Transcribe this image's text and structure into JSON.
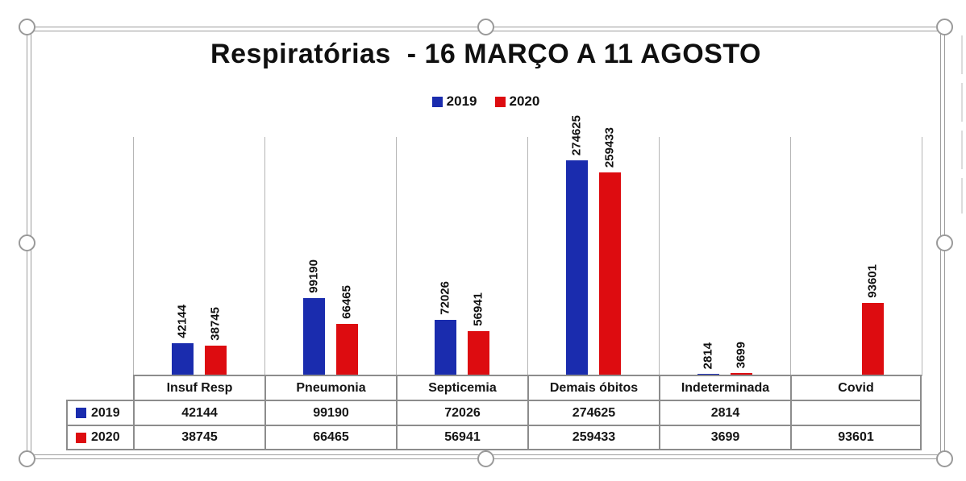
{
  "title": "Respiratórias  - 16 MARÇO A 11 AGOSTO",
  "legend": {
    "position": "top-center",
    "entries": [
      "2019",
      "2020"
    ]
  },
  "colors": {
    "series_2019": "#1a2cae",
    "series_2020": "#dd0c10"
  },
  "chart_data": {
    "type": "bar",
    "title": "Respiratórias  - 16 MARÇO A 11 AGOSTO",
    "categories": [
      "Insuf Resp",
      "Pneumonia",
      "Septicemia",
      "Demais óbitos",
      "Indeterminada",
      "Covid"
    ],
    "series": [
      {
        "name": "2019",
        "color": "#1a2cae",
        "values": [
          42144,
          99190,
          72026,
          274625,
          2814,
          null
        ]
      },
      {
        "name": "2020",
        "color": "#dd0c10",
        "values": [
          38745,
          66465,
          56941,
          259433,
          3699,
          93601
        ]
      }
    ],
    "xlabel": "",
    "ylabel": "",
    "ylim": [
      0,
      280000
    ],
    "grid": "vertical-category-separators",
    "legend_position": "top",
    "data_labels": "rotated 90° above bars",
    "data_table": {
      "shown": true,
      "row_headers": [
        "2019",
        "2020"
      ],
      "columns": [
        "Insuf Resp",
        "Pneumonia",
        "Septicemia",
        "Demais óbitos",
        "Indeterminada",
        "Covid"
      ],
      "rows": [
        [
          "42144",
          "99190",
          "72026",
          "274625",
          "2814",
          ""
        ],
        [
          "38745",
          "66465",
          "56941",
          "259433",
          "3699",
          "93601"
        ]
      ]
    }
  }
}
